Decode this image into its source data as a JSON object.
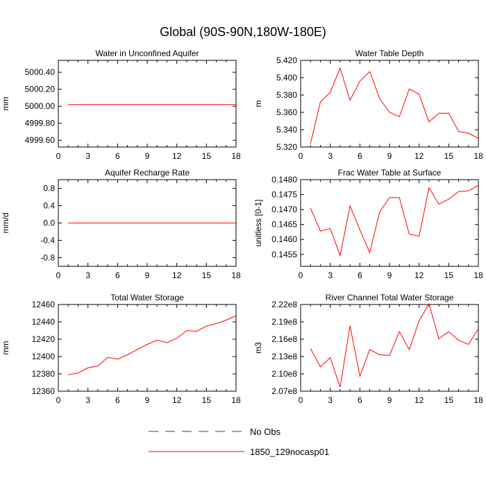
{
  "figure": {
    "title": "Global (90S-90N,180W-180E)"
  },
  "legend": {
    "entries": [
      {
        "label": "No Obs",
        "color": "#3333cc",
        "style": "dashed"
      },
      {
        "label": "1850_129nocasp01",
        "color": "#ff0000",
        "style": "solid"
      }
    ]
  },
  "chart_data": [
    {
      "type": "line",
      "title": "Water in Unconfined Aquifer",
      "ylabel": "mm",
      "xlim": [
        0,
        18
      ],
      "xticks": [
        0,
        3,
        6,
        9,
        12,
        15,
        18
      ],
      "ylim": [
        4999.52,
        5000.54
      ],
      "yticks": [
        4999.6,
        4999.8,
        5000.0,
        5000.2,
        5000.4
      ],
      "ytick_labels": [
        "4999.60",
        "4999.80",
        "5000.00",
        "5000.20",
        "5000.40"
      ],
      "series": [
        {
          "color": "#ff0000",
          "x": [
            1,
            2,
            3,
            4,
            5,
            6,
            7,
            8,
            9,
            10,
            11,
            12,
            13,
            14,
            15,
            16,
            17,
            18
          ],
          "values": [
            5000.02,
            5000.02,
            5000.02,
            5000.02,
            5000.02,
            5000.02,
            5000.02,
            5000.02,
            5000.02,
            5000.02,
            5000.02,
            5000.02,
            5000.02,
            5000.02,
            5000.02,
            5000.02,
            5000.02,
            5000.02
          ]
        }
      ]
    },
    {
      "type": "line",
      "title": "Water Table Depth",
      "ylabel": "m",
      "xlim": [
        0,
        18
      ],
      "xticks": [
        0,
        3,
        6,
        9,
        12,
        15,
        18
      ],
      "ylim": [
        5.32,
        5.42
      ],
      "yticks": [
        5.32,
        5.34,
        5.36,
        5.38,
        5.4,
        5.42
      ],
      "ytick_labels": [
        "5.320",
        "5.340",
        "5.360",
        "5.380",
        "5.400",
        "5.420"
      ],
      "series": [
        {
          "color": "#ff0000",
          "x": [
            1,
            2,
            3,
            4,
            5,
            6,
            7,
            8,
            9,
            10,
            11,
            12,
            13,
            14,
            15,
            16,
            17,
            18
          ],
          "values": [
            5.324,
            5.372,
            5.383,
            5.411,
            5.374,
            5.396,
            5.407,
            5.376,
            5.36,
            5.355,
            5.387,
            5.381,
            5.349,
            5.359,
            5.359,
            5.338,
            5.336,
            5.33
          ]
        }
      ]
    },
    {
      "type": "line",
      "title": "Aquifer Recharge Rate",
      "ylabel": "mm/d",
      "xlim": [
        0,
        18
      ],
      "xticks": [
        0,
        3,
        6,
        9,
        12,
        15,
        18
      ],
      "ylim": [
        -1.0,
        1.0
      ],
      "yticks": [
        -0.8,
        -0.4,
        0.0,
        0.4,
        0.8
      ],
      "ytick_labels": [
        "-0.8",
        "-0.4",
        "0.0",
        "0.4",
        "0.8"
      ],
      "series": [
        {
          "color": "#ff0000",
          "x": [
            1,
            2,
            3,
            4,
            5,
            6,
            7,
            8,
            9,
            10,
            11,
            12,
            13,
            14,
            15,
            16,
            17,
            18
          ],
          "values": [
            0,
            0,
            0,
            0,
            0,
            0,
            0,
            0,
            0,
            0,
            0,
            0,
            0,
            0,
            0,
            0,
            0,
            0
          ]
        }
      ]
    },
    {
      "type": "line",
      "title": "Frac Water Table at Surface",
      "ylabel": "unitless [0-1]",
      "xlim": [
        0,
        18
      ],
      "xticks": [
        0,
        3,
        6,
        9,
        12,
        15,
        18
      ],
      "ylim": [
        0.1451,
        0.148
      ],
      "yticks": [
        0.1455,
        0.146,
        0.1465,
        0.147,
        0.1475,
        0.148
      ],
      "ytick_labels": [
        "0.1455",
        "0.1460",
        "0.1465",
        "0.1470",
        "0.1475",
        "0.1480"
      ],
      "series": [
        {
          "color": "#ff0000",
          "x": [
            1,
            2,
            3,
            4,
            5,
            6,
            7,
            8,
            9,
            10,
            11,
            12,
            13,
            14,
            15,
            16,
            17,
            18
          ],
          "values": [
            0.14705,
            0.14628,
            0.14636,
            0.14546,
            0.14712,
            0.14632,
            0.14556,
            0.14692,
            0.1474,
            0.1474,
            0.14618,
            0.14611,
            0.14773,
            0.14718,
            0.14735,
            0.1476,
            0.14763,
            0.14781
          ]
        }
      ]
    },
    {
      "type": "line",
      "title": "Total Water Storage",
      "ylabel": "mm",
      "xlim": [
        0,
        18
      ],
      "xticks": [
        0,
        3,
        6,
        9,
        12,
        15,
        18
      ],
      "ylim": [
        12360,
        12460
      ],
      "yticks": [
        12360,
        12380,
        12400,
        12420,
        12440,
        12460
      ],
      "ytick_labels": [
        "12360",
        "12380",
        "12400",
        "12420",
        "12440",
        "12460"
      ],
      "series": [
        {
          "color": "#ff0000",
          "x": [
            1,
            2,
            3,
            4,
            5,
            6,
            7,
            8,
            9,
            10,
            11,
            12,
            13,
            14,
            15,
            16,
            17,
            18
          ],
          "values": [
            12379,
            12381,
            12387,
            12389,
            12399,
            12397,
            12402,
            12408,
            12414,
            12419,
            12416,
            12421,
            12430,
            12429,
            12435,
            12438,
            12442,
            12447
          ]
        }
      ]
    },
    {
      "type": "line",
      "title": "River Channel Total Water Storage",
      "ylabel": "m3",
      "xlim": [
        0,
        18
      ],
      "xticks": [
        0,
        3,
        6,
        9,
        12,
        15,
        18
      ],
      "ylim": [
        207000000.0,
        222000000.0
      ],
      "yticks": [
        207000000.0,
        210000000.0,
        213000000.0,
        216000000.0,
        219000000.0,
        222000000.0
      ],
      "ytick_labels": [
        "2.07e8",
        "2.10e8",
        "2.13e8",
        "2.16e8",
        "2.19e8",
        "2.22e8"
      ],
      "series": [
        {
          "color": "#ff0000",
          "x": [
            1,
            2,
            3,
            4,
            5,
            6,
            7,
            8,
            9,
            10,
            11,
            12,
            13,
            14,
            15,
            16,
            17,
            18
          ],
          "values": [
            214400000.0,
            211200000.0,
            212800000.0,
            207700000.0,
            218300000.0,
            209600000.0,
            214200000.0,
            213300000.0,
            213200000.0,
            217300000.0,
            214200000.0,
            219200000.0,
            222100000.0,
            216100000.0,
            217300000.0,
            215800000.0,
            215100000.0,
            217800000.0
          ]
        }
      ]
    }
  ]
}
